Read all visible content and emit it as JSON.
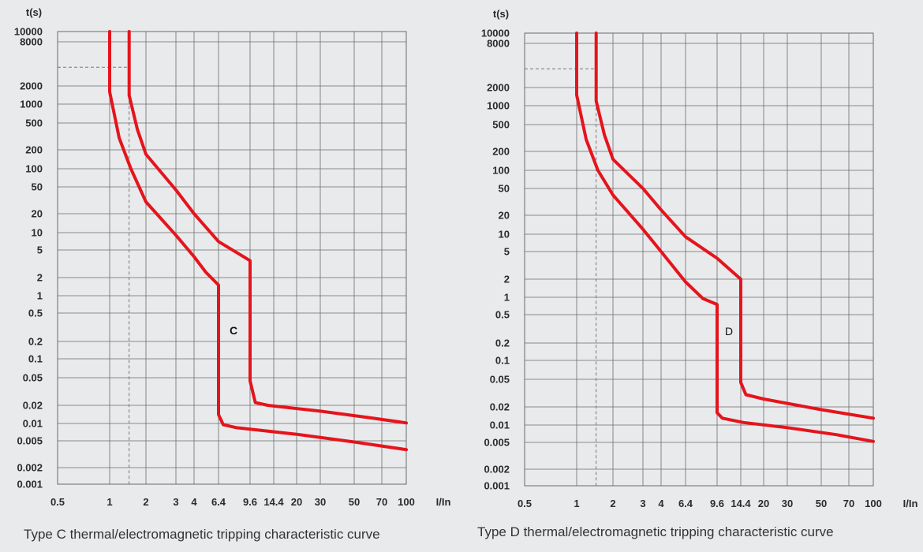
{
  "colors": {
    "background": "#e9eaec",
    "curve": "#e5141c",
    "grid": "#6b6b6b",
    "text": "#2b2b2b"
  },
  "chart_data": [
    {
      "type": "line",
      "title": "",
      "caption": "Type C thermal/electromagnetic tripping characteristic curve",
      "curve_label": "C",
      "xlabel": "I/In",
      "ylabel": "t(s)",
      "x_scale": "log",
      "y_scale": "log",
      "x_ticks": [
        "0.5",
        "1",
        "2",
        "3",
        "4",
        "6.4",
        "9.6",
        "14.4",
        "20",
        "30",
        "50",
        "70",
        "100"
      ],
      "y_ticks": [
        "10000",
        "8000",
        "2000",
        "1000",
        "500",
        "200",
        "100",
        "50",
        "20",
        "10",
        "5",
        "2",
        "1",
        "0.5",
        "0.2",
        "0.1",
        "0.05",
        "0.02",
        "0.01",
        "0.005",
        "0.002",
        "0.001"
      ],
      "xlim": [
        0.5,
        100
      ],
      "ylim": [
        0.001,
        10000
      ],
      "grid": true,
      "reference": {
        "x": 1.45,
        "y": 3600
      },
      "series": [
        {
          "points": [
            [
              1,
              10000
            ],
            [
              1,
              1600
            ],
            [
              1.2,
              300
            ],
            [
              1.5,
              100
            ],
            [
              2,
              30
            ],
            [
              3,
              9
            ],
            [
              4,
              4
            ],
            [
              5,
              2.4
            ],
            [
              6.4,
              1.5
            ],
            [
              6.4,
              0.014
            ],
            [
              6.8,
              0.0095
            ],
            [
              8,
              0.0085
            ],
            [
              20,
              0.0065
            ],
            [
              50,
              0.0048
            ],
            [
              100,
              0.0037
            ]
          ]
        },
        {
          "points": [
            [
              1.45,
              10000
            ],
            [
              1.45,
              1400
            ],
            [
              1.7,
              400
            ],
            [
              2,
              170
            ],
            [
              3,
              45
            ],
            [
              4,
              20
            ],
            [
              6.4,
              7
            ],
            [
              9.6,
              3.5
            ],
            [
              9.6,
              0.045
            ],
            [
              10.5,
              0.022
            ],
            [
              13,
              0.02
            ],
            [
              30,
              0.016
            ],
            [
              60,
              0.0125
            ],
            [
              100,
              0.0102
            ]
          ]
        }
      ]
    },
    {
      "type": "line",
      "title": "",
      "caption": "Type D thermal/electromagnetic tripping characteristic curve",
      "curve_label": "D",
      "xlabel": "I/In",
      "ylabel": "t(s)",
      "x_scale": "log",
      "y_scale": "log",
      "x_ticks": [
        "0.5",
        "1",
        "2",
        "3",
        "4",
        "6.4",
        "9.6",
        "14.4",
        "20",
        "30",
        "50",
        "70",
        "100"
      ],
      "y_ticks": [
        "10000",
        "8000",
        "2000",
        "1000",
        "500",
        "200",
        "100",
        "50",
        "20",
        "10",
        "5",
        "2",
        "1",
        "0.5",
        "0.2",
        "0.1",
        "0.05",
        "0.02",
        "0.01",
        "0.005",
        "0.002",
        "0.001"
      ],
      "xlim": [
        0.5,
        100
      ],
      "ylim": [
        0.001,
        10000
      ],
      "grid": true,
      "reference": {
        "x": 1.45,
        "y": 3600
      },
      "series": [
        {
          "points": [
            [
              1,
              10000
            ],
            [
              1,
              1500
            ],
            [
              1.2,
              300
            ],
            [
              1.5,
              100
            ],
            [
              2,
              40
            ],
            [
              3,
              12
            ],
            [
              4,
              5
            ],
            [
              6.4,
              1.8
            ],
            [
              8,
              0.95
            ],
            [
              9.6,
              0.75
            ],
            [
              9.6,
              0.016
            ],
            [
              10.5,
              0.013
            ],
            [
              15,
              0.011
            ],
            [
              30,
              0.009
            ],
            [
              60,
              0.0068
            ],
            [
              100,
              0.0052
            ]
          ]
        },
        {
          "points": [
            [
              1.45,
              10000
            ],
            [
              1.45,
              1200
            ],
            [
              1.7,
              350
            ],
            [
              2,
              150
            ],
            [
              3,
              50
            ],
            [
              4,
              24
            ],
            [
              6.4,
              9
            ],
            [
              9.6,
              4
            ],
            [
              14.4,
              2
            ],
            [
              14.4,
              0.045
            ],
            [
              15.5,
              0.03
            ],
            [
              20,
              0.026
            ],
            [
              50,
              0.018
            ],
            [
              100,
              0.013
            ]
          ]
        }
      ]
    }
  ]
}
